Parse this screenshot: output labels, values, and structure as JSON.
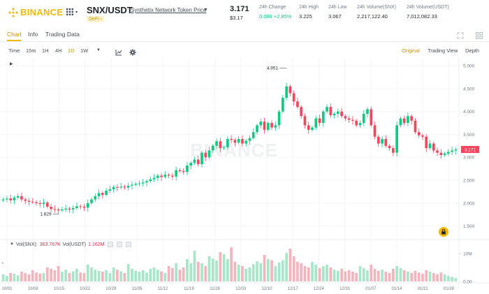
{
  "brand": {
    "name": "BINANCE",
    "color": "#f0b90b"
  },
  "pair": {
    "symbol": "SNX/USDT",
    "full_name": "Synthetix Network Token Price",
    "tag": "DeFi ›"
  },
  "price": {
    "last": "3.171",
    "usd": "$3.17"
  },
  "stats": [
    {
      "label": "24h Change",
      "value": "0.088 +2.85%",
      "tone": "up"
    },
    {
      "label": "24h High",
      "value": "3.225",
      "tone": "neutral"
    },
    {
      "label": "24h Low",
      "value": "3.067",
      "tone": "neutral"
    },
    {
      "label": "24h Volume(SNX)",
      "value": "2,217,122.40",
      "tone": "neutral"
    },
    {
      "label": "24h Volume(USDT)",
      "value": "7,012,082.33",
      "tone": "neutral"
    }
  ],
  "tabs": [
    {
      "label": "Chart",
      "active": true
    },
    {
      "label": "Info",
      "active": false
    },
    {
      "label": "Trading Data",
      "active": false
    }
  ],
  "toolbar": {
    "intervals": [
      "Time",
      "15m",
      "1H",
      "4H",
      "1D",
      "1W"
    ],
    "active_interval": "1D",
    "views": [
      "Original",
      "Trading View",
      "Depth"
    ],
    "active_view": "Original"
  },
  "volume_legend": {
    "label_snx": "Vol(SNX):",
    "value_snx": "363.767K",
    "label_usdt": "Vol(USDT)",
    "value_usdt": "1.162M"
  },
  "watermark": "BINANCE",
  "chart_data": {
    "type": "candlestick",
    "interval": "1D",
    "colors": {
      "up": "#0ecb81",
      "down": "#f6465d",
      "up_volume": "#a8e6c9",
      "down_volume": "#f5b3bc"
    },
    "y_ticks": [
      1.5,
      2.0,
      2.5,
      3.0,
      3.5,
      4.0,
      4.5,
      5.0
    ],
    "y_tick_labels": [
      "1.500",
      "2.000",
      "2.500",
      "3.000",
      "3.500",
      "4.000",
      "4.500",
      "5.000"
    ],
    "ylim": [
      1.28,
      5.17
    ],
    "x_tick_labels": [
      "10/01",
      "10/08",
      "10/15",
      "10/22",
      "10/29",
      "11/05",
      "11/12",
      "11/19",
      "11/26",
      "12/03",
      "12/10",
      "12/17",
      "12/24",
      "12/31",
      "01/07",
      "01/14",
      "01/21",
      "01/28"
    ],
    "annotations": {
      "high_label": "4.951",
      "low_label": "1.829"
    },
    "last_price_label": "3.171",
    "volume_ticks": [
      "10M",
      "0.00"
    ],
    "volume_max_millions": 13,
    "close_series": [
      2.08,
      2.1,
      2.06,
      2.12,
      2.15,
      2.08,
      2.05,
      2.03,
      2.02,
      2.0,
      1.98,
      2.01,
      1.92,
      1.87,
      1.86,
      1.84,
      1.86,
      1.88,
      1.86,
      1.89,
      1.93,
      1.92,
      1.9,
      2.0,
      2.08,
      2.15,
      2.22,
      2.18,
      2.27,
      2.3,
      2.35,
      2.34,
      2.36,
      2.34,
      2.38,
      2.4,
      2.42,
      2.43,
      2.45,
      2.48,
      2.52,
      2.55,
      2.6,
      2.57,
      2.62,
      2.6,
      2.58,
      2.72,
      2.7,
      2.68,
      2.82,
      2.88,
      2.95,
      2.85,
      3.1,
      3.0,
      3.15,
      3.25,
      3.35,
      3.2,
      3.22,
      3.4,
      3.38,
      3.32,
      3.4,
      3.3,
      3.36,
      3.42,
      3.55,
      3.7,
      3.78,
      3.6,
      3.75,
      3.65,
      3.7,
      4.0,
      4.3,
      4.55,
      4.4,
      4.22,
      4.1,
      3.9,
      3.7,
      3.6,
      3.65,
      3.85,
      3.75,
      4.0,
      4.1,
      3.92,
      3.95,
      4.0,
      3.9,
      3.85,
      3.82,
      3.8,
      3.7,
      3.75,
      3.95,
      4.05,
      3.7,
      3.45,
      3.3,
      3.4,
      3.25,
      3.2,
      3.1,
      3.7,
      3.85,
      3.75,
      3.9,
      3.8,
      3.55,
      3.48,
      3.45,
      3.2,
      3.3,
      3.15,
      3.1,
      3.05,
      3.08,
      3.12,
      3.15,
      3.171
    ],
    "volume_series_millions": [
      2.5,
      2.0,
      3.0,
      2.8,
      2.2,
      3.5,
      3.0,
      2.5,
      4.0,
      3.2,
      2.8,
      3.0,
      5.0,
      4.5,
      4.0,
      5.5,
      3.5,
      4.2,
      3.0,
      3.6,
      4.5,
      3.2,
      3.0,
      6.0,
      5.0,
      4.2,
      3.8,
      3.5,
      4.0,
      3.0,
      5.0,
      4.2,
      3.6,
      3.0,
      6.2,
      4.5,
      3.8,
      3.5,
      4.0,
      3.2,
      4.5,
      5.0,
      4.2,
      3.6,
      3.0,
      5.5,
      4.8,
      6.5,
      4.2,
      5.0,
      8.0,
      6.5,
      11.0,
      7.0,
      6.5,
      5.5,
      9.0,
      8.2,
      7.5,
      10.5,
      9.8,
      8.0,
      12.2,
      7.0,
      6.0,
      5.5,
      4.5,
      5.0,
      6.2,
      7.2,
      6.5,
      9.5,
      8.0,
      7.6,
      5.5,
      6.8,
      7.5,
      10.2,
      11.8,
      9.0,
      7.0,
      6.5,
      5.5,
      5.0,
      7.0,
      6.0,
      4.8,
      5.5,
      6.0,
      5.0,
      4.2,
      3.8,
      4.5,
      3.6,
      4.0,
      3.5,
      3.0,
      5.5,
      4.8,
      4.0,
      6.0,
      4.5,
      3.8,
      4.2,
      3.5,
      3.0,
      4.5,
      5.5,
      4.8,
      4.0,
      3.5,
      3.0,
      3.8,
      3.2,
      2.8,
      4.0,
      3.5,
      3.0,
      2.6,
      3.2,
      2.5,
      2.0,
      1.6,
      1.2
    ]
  }
}
